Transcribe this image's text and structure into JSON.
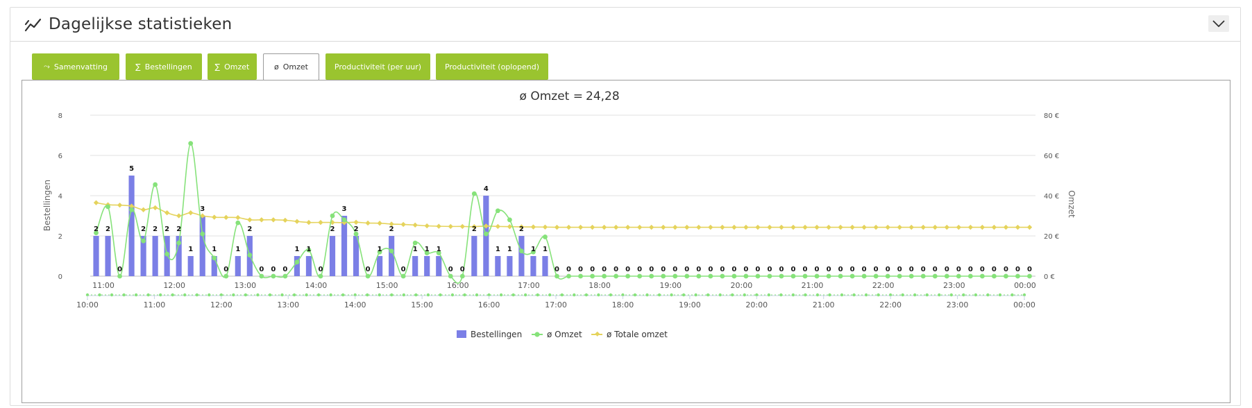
{
  "header": {
    "title": "Dagelijkse statistieken",
    "icon": "line-chart-icon",
    "collapse_icon": "chevron-down-icon"
  },
  "tabs": [
    {
      "label": "Samenvatting",
      "icon": "shuffle-icon",
      "glyph": "⤳",
      "active": false
    },
    {
      "label": "Bestellingen",
      "icon": "sigma-icon",
      "glyph": "∑",
      "active": false
    },
    {
      "label": "Omzet",
      "icon": "sigma-icon",
      "glyph": "∑",
      "active": false
    },
    {
      "label": "Omzet",
      "icon": "average-icon",
      "glyph": "ø",
      "active": true
    },
    {
      "label": "Productiviteit (per uur)",
      "icon": "",
      "glyph": "",
      "active": false
    },
    {
      "label": "Productiviteit (oplopend)",
      "icon": "",
      "glyph": "",
      "active": false
    }
  ],
  "colors": {
    "accent": "#9ac42f",
    "bars": "#7b7fe6",
    "avg": "#86e27a",
    "total": "#e5d35c"
  },
  "chart_data": {
    "type": "bar",
    "title": "ø Omzet = ",
    "title_value": "24,28",
    "y_left_label": "Bestellingen",
    "y_right_label": "Omzet",
    "y_left_ticks": [
      "0",
      "2",
      "4",
      "6",
      "8"
    ],
    "y_right_ticks": [
      "0 €",
      "20 €",
      "40 €",
      "60 €",
      "80 €"
    ],
    "ylim_left": [
      0,
      8
    ],
    "ylim_right": [
      0,
      80
    ],
    "x_ticks_top": [
      "11:00",
      "12:00",
      "13:00",
      "14:00",
      "15:00",
      "16:00",
      "17:00",
      "18:00",
      "19:00",
      "20:00",
      "21:00",
      "22:00",
      "23:00",
      "00:00"
    ],
    "x_ticks_bottom": [
      "10:00",
      "11:00",
      "12:00",
      "13:00",
      "14:00",
      "15:00",
      "16:00",
      "17:00",
      "18:00",
      "19:00",
      "20:00",
      "21:00",
      "22:00",
      "23:00",
      "00:00"
    ],
    "x_start": "10:50",
    "interval_minutes": 10,
    "legend": [
      "Bestellingen",
      "ø Omzet",
      "ø Totale omzet"
    ],
    "legend_position": "bottom",
    "grid": true,
    "series": [
      {
        "name": "Bestellingen",
        "type": "bar",
        "axis": "left",
        "values": [
          2,
          2,
          0,
          5,
          2,
          2,
          2,
          2,
          1,
          3,
          1,
          0,
          1,
          2,
          0,
          0,
          0,
          1,
          1,
          0,
          2,
          3,
          2,
          0,
          1,
          2,
          0,
          1,
          1,
          1,
          0,
          0,
          2,
          4,
          1,
          1,
          2,
          1,
          1,
          0,
          0,
          0,
          0,
          0,
          0,
          0,
          0,
          0,
          0,
          0,
          0,
          0,
          0,
          0,
          0,
          0,
          0,
          0,
          0,
          0,
          0,
          0,
          0,
          0,
          0,
          0,
          0,
          0,
          0,
          0,
          0,
          0,
          0,
          0,
          0,
          0,
          0,
          0,
          0,
          0
        ]
      },
      {
        "name": "ø Omzet",
        "type": "line",
        "axis": "right",
        "values": [
          21.5,
          34.5,
          0,
          33,
          17.5,
          45.5,
          11,
          16.5,
          66,
          21,
          9,
          0,
          26.5,
          10.5,
          0,
          0,
          0,
          7,
          13,
          0,
          30,
          28,
          21,
          0,
          12,
          12.5,
          0,
          16.5,
          11.5,
          11.5,
          0,
          0,
          41,
          21,
          32.5,
          28,
          12.5,
          12,
          19.5,
          0,
          0,
          0,
          0,
          0,
          0,
          0,
          0,
          0,
          0,
          0,
          0,
          0,
          0,
          0,
          0,
          0,
          0,
          0,
          0,
          0,
          0,
          0,
          0,
          0,
          0,
          0,
          0,
          0,
          0,
          0,
          0,
          0,
          0,
          0,
          0,
          0,
          0,
          0,
          0,
          0
        ]
      },
      {
        "name": "ø Totale omzet",
        "type": "line",
        "axis": "right",
        "values": [
          36.5,
          35.5,
          35.3,
          34.8,
          33,
          34,
          31.5,
          30,
          31.5,
          30,
          29.3,
          29.2,
          29.1,
          28,
          28,
          28,
          27.8,
          27.2,
          26.7,
          26.7,
          26.7,
          26.6,
          26.8,
          26.4,
          26.3,
          25.9,
          25.7,
          25.4,
          25,
          24.8,
          24.7,
          24.7,
          24.6,
          24.9,
          24.7,
          24.6,
          24.5,
          24.45,
          24.4,
          24.3,
          24.3,
          24.3,
          24.3,
          24.3,
          24.3,
          24.3,
          24.3,
          24.3,
          24.3,
          24.3,
          24.3,
          24.3,
          24.3,
          24.3,
          24.3,
          24.3,
          24.3,
          24.3,
          24.3,
          24.3,
          24.3,
          24.3,
          24.3,
          24.3,
          24.3,
          24.3,
          24.3,
          24.3,
          24.3,
          24.3,
          24.3,
          24.3,
          24.3,
          24.3,
          24.3,
          24.3,
          24.3,
          24.3,
          24.3,
          24.3
        ]
      }
    ]
  }
}
